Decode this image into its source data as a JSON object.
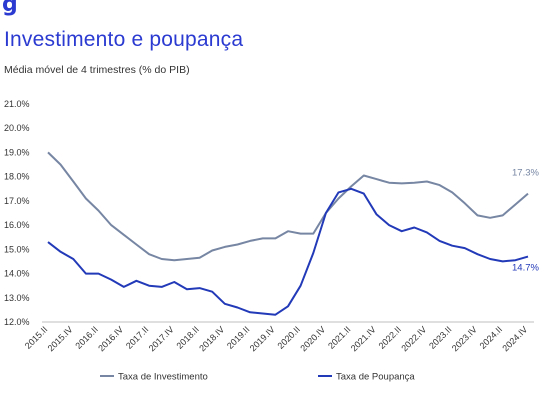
{
  "header": {
    "logo_text": "g",
    "title": "Investimento e poupança",
    "subtitle": "Média móvel de 4 trimestres (% do PIB)"
  },
  "colors": {
    "investimento": "#7686a3",
    "poupanca": "#2239b8",
    "title": "#2b3bd1"
  },
  "chart_data": {
    "type": "line",
    "title": "Investimento e poupança",
    "subtitle": "Média móvel de 4 trimestres (% do PIB)",
    "ylim": [
      12.0,
      21.0
    ],
    "yticks": [
      "12.0%",
      "13.0%",
      "14.0%",
      "15.0%",
      "16.0%",
      "17.0%",
      "18.0%",
      "19.0%",
      "20.0%",
      "21.0%"
    ],
    "x": [
      "2015.II",
      "2015.III",
      "2015.IV",
      "2016.I",
      "2016.II",
      "2016.III",
      "2016.IV",
      "2017.I",
      "2017.II",
      "2017.III",
      "2017.IV",
      "2018.I",
      "2018.II",
      "2018.III",
      "2018.IV",
      "2019.I",
      "2019.II",
      "2019.III",
      "2019.IV",
      "2020.I",
      "2020.II",
      "2020.III",
      "2020.IV",
      "2021.I",
      "2021.II",
      "2021.III",
      "2021.IV",
      "2022.I",
      "2022.II",
      "2022.III",
      "2022.IV",
      "2023.I",
      "2023.II",
      "2023.III",
      "2023.IV",
      "2024.I",
      "2024.II",
      "2024.III",
      "2024.IV"
    ],
    "xtick_labels": [
      "2015.II",
      "2015.IV",
      "2016.II",
      "2016.IV",
      "2017.II",
      "2017.IV",
      "2018.II",
      "2018.IV",
      "2019.II",
      "2019.IV",
      "2020.II",
      "2020.IV",
      "2021.II",
      "2021.IV",
      "2022.II",
      "2022.IV",
      "2023.II",
      "2023.IV",
      "2024.II",
      "2024.IV"
    ],
    "series": [
      {
        "name": "Taxa de Investimento",
        "values": [
          19.0,
          18.5,
          17.8,
          17.1,
          16.6,
          16.0,
          15.6,
          15.2,
          14.8,
          14.6,
          14.55,
          14.6,
          14.65,
          14.95,
          15.1,
          15.2,
          15.35,
          15.45,
          15.45,
          15.75,
          15.65,
          15.65,
          16.5,
          17.1,
          17.6,
          18.05,
          17.9,
          17.75,
          17.72,
          17.75,
          17.8,
          17.65,
          17.35,
          16.9,
          16.4,
          16.3,
          16.4,
          16.85,
          17.3
        ],
        "end_label": "17.3%"
      },
      {
        "name": "Taxa de Poupança",
        "values": [
          15.3,
          14.9,
          14.6,
          14.0,
          14.0,
          13.75,
          13.45,
          13.7,
          13.5,
          13.45,
          13.65,
          13.35,
          13.4,
          13.25,
          12.75,
          12.6,
          12.4,
          12.35,
          12.3,
          12.65,
          13.5,
          14.85,
          16.5,
          17.35,
          17.5,
          17.3,
          16.45,
          16.0,
          15.75,
          15.9,
          15.7,
          15.35,
          15.15,
          15.05,
          14.8,
          14.6,
          14.5,
          14.55,
          14.7
        ],
        "end_label": "14.7%"
      }
    ],
    "legend": [
      "Taxa de Investimento",
      "Taxa de Poupança"
    ],
    "legend_position": "bottom",
    "grid": false
  }
}
